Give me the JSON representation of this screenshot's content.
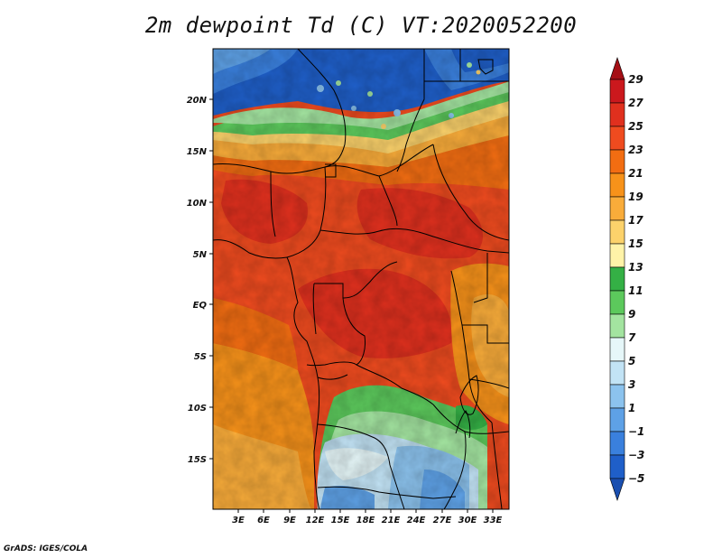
{
  "title": "2m dewpoint Td (C) VT:2020052200",
  "footer": "GrADS: IGES/COLA",
  "map": {
    "lat_labels": [
      "20N",
      "15N",
      "10N",
      "5N",
      "EQ",
      "5S",
      "10S",
      "15S"
    ],
    "lon_labels": [
      "3E",
      "6E",
      "9E",
      "12E",
      "15E",
      "18E",
      "21E",
      "24E",
      "27E",
      "30E",
      "33E"
    ]
  },
  "colorbar": {
    "levels": [
      "29",
      "27",
      "25",
      "23",
      "21",
      "19",
      "17",
      "15",
      "13",
      "11",
      "9",
      "7",
      "5",
      "3",
      "1",
      "−1",
      "−3",
      "−5"
    ],
    "colors": [
      "#a50f15",
      "#cb181d",
      "#e0301e",
      "#ef4b1f",
      "#f26d12",
      "#f7921a",
      "#f9ac3a",
      "#fcd26b",
      "#fff3a8",
      "#34b045",
      "#5cc95c",
      "#a3e4a0",
      "#e6f7f9",
      "#c2e3f5",
      "#8cc3ee",
      "#5ea1e6",
      "#3a80dd",
      "#1f5fc9",
      "#1a4fb0"
    ]
  },
  "colors": {
    "cold": "#1f5fc9",
    "warm": "#ef4b1f",
    "border": "#000000"
  }
}
